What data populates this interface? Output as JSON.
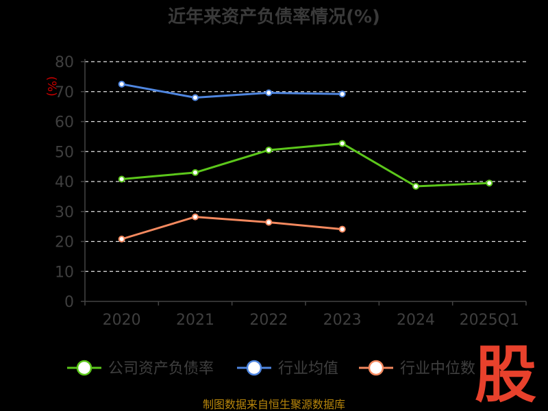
{
  "chart_data": {
    "type": "line",
    "title": "近年来资产负债率情况(%)",
    "ylabel": "(%)",
    "categories": [
      "2020",
      "2021",
      "2022",
      "2023",
      "2024",
      "2025Q1"
    ],
    "ylim": [
      0,
      80
    ],
    "yticks": [
      0,
      10,
      20,
      30,
      40,
      50,
      60,
      70,
      80
    ],
    "grid": true,
    "legend_position": "bottom",
    "series": [
      {
        "name": "公司资产负债率",
        "color": "#5cc71b",
        "values": [
          40.8,
          43.0,
          50.5,
          52.7,
          38.4,
          39.5
        ]
      },
      {
        "name": "行业均值",
        "color": "#4f86e0",
        "values": [
          72.5,
          68.0,
          69.6,
          69.2,
          null,
          null
        ]
      },
      {
        "name": "行业中位数",
        "color": "#f4895f",
        "values": [
          20.8,
          28.2,
          26.4,
          24.1,
          null,
          null
        ]
      }
    ]
  },
  "source": "制图数据来自恒生聚源数据库",
  "logo": "股"
}
